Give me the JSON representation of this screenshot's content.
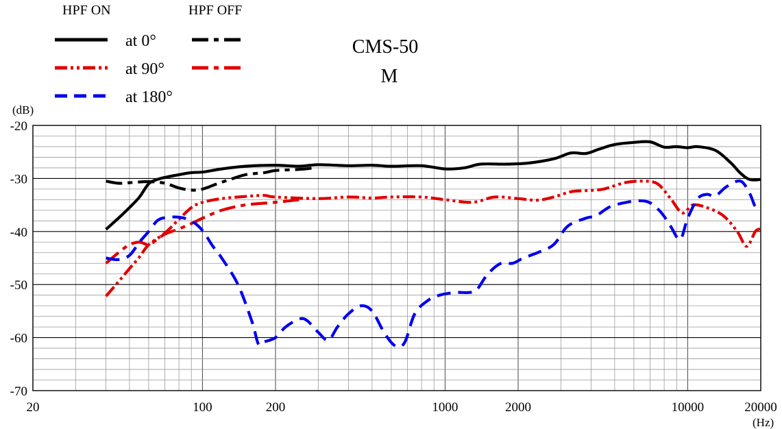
{
  "chart_data": {
    "type": "line",
    "title": "CMS-50",
    "subtitle": "M",
    "xlabel": "(Hz)",
    "ylabel": "(dB)",
    "xscale": "log",
    "xlim": [
      20,
      20000
    ],
    "ylim": [
      -70,
      -20
    ],
    "x_ticks": [
      {
        "value": 20,
        "label": "20"
      },
      {
        "value": 100,
        "label": "100"
      },
      {
        "value": 200,
        "label": "200"
      },
      {
        "value": 1000,
        "label": "1000"
      },
      {
        "value": 2000,
        "label": "2000"
      },
      {
        "value": 10000,
        "label": "10000"
      },
      {
        "value": 20000,
        "label": "20000"
      }
    ],
    "y_ticks": [
      {
        "value": -20,
        "label": "-20"
      },
      {
        "value": -30,
        "label": "-30"
      },
      {
        "value": -40,
        "label": "-40"
      },
      {
        "value": -50,
        "label": "-50"
      },
      {
        "value": -60,
        "label": "-60"
      },
      {
        "value": -70,
        "label": "-70"
      }
    ],
    "legend": {
      "position": "top-left",
      "head_on": "HPF  ON",
      "head_off": "HPF  OFF",
      "labels": [
        "at 0°",
        "at 90°",
        "at 180°"
      ]
    },
    "series": [
      {
        "name": "at 0° HPF ON",
        "color": "#000000",
        "style": "solid",
        "points": [
          [
            40,
            -39.6
          ],
          [
            45,
            -37.5
          ],
          [
            50,
            -35.5
          ],
          [
            55,
            -33.5
          ],
          [
            60,
            -31
          ],
          [
            65,
            -30.2
          ],
          [
            70,
            -29.8
          ],
          [
            80,
            -29.3
          ],
          [
            90,
            -28.9
          ],
          [
            100,
            -28.8
          ],
          [
            120,
            -28.2
          ],
          [
            150,
            -27.7
          ],
          [
            200,
            -27.5
          ],
          [
            250,
            -27.7
          ],
          [
            300,
            -27.4
          ],
          [
            400,
            -27.6
          ],
          [
            500,
            -27.5
          ],
          [
            600,
            -27.7
          ],
          [
            800,
            -27.6
          ],
          [
            1000,
            -28.2
          ],
          [
            1200,
            -28
          ],
          [
            1400,
            -27.3
          ],
          [
            1800,
            -27.3
          ],
          [
            2200,
            -27.1
          ],
          [
            2800,
            -26.3
          ],
          [
            3300,
            -25.2
          ],
          [
            3800,
            -25.3
          ],
          [
            4300,
            -24.5
          ],
          [
            5000,
            -23.6
          ],
          [
            6000,
            -23.2
          ],
          [
            7000,
            -23.1
          ],
          [
            8000,
            -24.1
          ],
          [
            9000,
            -24
          ],
          [
            10000,
            -24.2
          ],
          [
            11000,
            -24
          ],
          [
            13000,
            -24.7
          ],
          [
            15000,
            -27
          ],
          [
            16500,
            -29
          ],
          [
            18000,
            -30.2
          ],
          [
            20000,
            -30.2
          ]
        ]
      },
      {
        "name": "at 0° HPF OFF",
        "color": "#000000",
        "style": "dashdot",
        "points": [
          [
            40,
            -30.5
          ],
          [
            45,
            -30.9
          ],
          [
            50,
            -30.8
          ],
          [
            60,
            -30.6
          ],
          [
            70,
            -30.9
          ],
          [
            80,
            -31.8
          ],
          [
            90,
            -32.2
          ],
          [
            100,
            -32
          ],
          [
            115,
            -31
          ],
          [
            130,
            -30.2
          ],
          [
            150,
            -29.3
          ],
          [
            180,
            -28.9
          ],
          [
            200,
            -28.5
          ],
          [
            250,
            -28.3
          ],
          [
            290,
            -28
          ]
        ]
      },
      {
        "name": "at 90° HPF ON",
        "color": "#e00000",
        "style": "dashdotdot",
        "points": [
          [
            40,
            -52.2
          ],
          [
            45,
            -49.5
          ],
          [
            50,
            -47
          ],
          [
            55,
            -44.8
          ],
          [
            60,
            -42.5
          ],
          [
            70,
            -40.3
          ],
          [
            80,
            -37.7
          ],
          [
            90,
            -35.5
          ],
          [
            100,
            -34.5
          ],
          [
            120,
            -33.8
          ],
          [
            150,
            -33.4
          ],
          [
            180,
            -33.2
          ],
          [
            200,
            -33.5
          ],
          [
            300,
            -33.8
          ],
          [
            400,
            -33.5
          ],
          [
            500,
            -33.7
          ],
          [
            600,
            -33.5
          ],
          [
            800,
            -33.5
          ],
          [
            1000,
            -34
          ],
          [
            1300,
            -34.5
          ],
          [
            1600,
            -33.5
          ],
          [
            2000,
            -33.8
          ],
          [
            2400,
            -34.1
          ],
          [
            2800,
            -33.5
          ],
          [
            3300,
            -32.5
          ],
          [
            3800,
            -32.3
          ],
          [
            4500,
            -32
          ],
          [
            5500,
            -30.8
          ],
          [
            6500,
            -30.5
          ],
          [
            7500,
            -31
          ],
          [
            8500,
            -33.8
          ],
          [
            9500,
            -36.5
          ],
          [
            10500,
            -35
          ],
          [
            12000,
            -35.5
          ],
          [
            14000,
            -37
          ],
          [
            16000,
            -40
          ],
          [
            17500,
            -42.8
          ],
          [
            19000,
            -40
          ],
          [
            20000,
            -39.5
          ]
        ]
      },
      {
        "name": "at 90° HPF OFF",
        "color": "#e00000",
        "style": "dashdot",
        "points": [
          [
            40,
            -46
          ],
          [
            45,
            -44
          ],
          [
            50,
            -42.5
          ],
          [
            55,
            -42
          ],
          [
            60,
            -42.5
          ],
          [
            65,
            -41.5
          ],
          [
            70,
            -40.5
          ],
          [
            80,
            -39.5
          ],
          [
            90,
            -38.5
          ],
          [
            100,
            -37.5
          ],
          [
            120,
            -36
          ],
          [
            150,
            -35
          ],
          [
            200,
            -34.5
          ],
          [
            250,
            -34
          ]
        ]
      },
      {
        "name": "at 180° HPF ON",
        "color": "#0000ee",
        "style": "dashed",
        "points": [
          [
            40,
            -45
          ],
          [
            45,
            -45.3
          ],
          [
            50,
            -44.5
          ],
          [
            55,
            -42
          ],
          [
            60,
            -40
          ],
          [
            65,
            -38
          ],
          [
            70,
            -37.4
          ],
          [
            80,
            -37.3
          ],
          [
            90,
            -38
          ],
          [
            100,
            -39.8
          ],
          [
            110,
            -42.7
          ],
          [
            120,
            -45
          ],
          [
            140,
            -50
          ],
          [
            160,
            -57
          ],
          [
            170,
            -61.2
          ],
          [
            180,
            -60.8
          ],
          [
            200,
            -60
          ],
          [
            220,
            -58
          ],
          [
            250,
            -56.5
          ],
          [
            270,
            -56.8
          ],
          [
            300,
            -59
          ],
          [
            330,
            -60.5
          ],
          [
            360,
            -58
          ],
          [
            400,
            -55.5
          ],
          [
            450,
            -54
          ],
          [
            500,
            -55
          ],
          [
            560,
            -59
          ],
          [
            620,
            -61.5
          ],
          [
            680,
            -61
          ],
          [
            750,
            -55.5
          ],
          [
            850,
            -53
          ],
          [
            950,
            -52
          ],
          [
            1100,
            -51.5
          ],
          [
            1250,
            -51.5
          ],
          [
            1350,
            -51
          ],
          [
            1500,
            -48
          ],
          [
            1700,
            -46
          ],
          [
            1900,
            -46
          ],
          [
            2100,
            -45
          ],
          [
            2400,
            -44
          ],
          [
            2800,
            -42.5
          ],
          [
            3200,
            -39
          ],
          [
            3800,
            -37.5
          ],
          [
            4200,
            -37
          ],
          [
            4800,
            -35.3
          ],
          [
            5600,
            -34.5
          ],
          [
            6300,
            -34.2
          ],
          [
            7000,
            -34.6
          ],
          [
            7800,
            -36.5
          ],
          [
            8500,
            -39
          ],
          [
            9300,
            -41.5
          ],
          [
            10000,
            -37.5
          ],
          [
            11000,
            -33.8
          ],
          [
            12000,
            -33
          ],
          [
            13000,
            -33.3
          ],
          [
            14500,
            -31.5
          ],
          [
            16500,
            -30.5
          ],
          [
            18000,
            -32.8
          ],
          [
            19000,
            -35.3
          ],
          [
            20000,
            -35.2
          ]
        ]
      }
    ]
  }
}
